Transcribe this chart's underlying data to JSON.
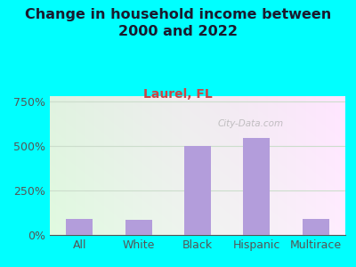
{
  "title": "Change in household income between\n2000 and 2022",
  "subtitle": "Laurel, FL",
  "categories": [
    "All",
    "White",
    "Black",
    "Hispanic",
    "Multirace"
  ],
  "values": [
    90,
    85,
    500,
    545,
    90
  ],
  "bar_color": "#b39ddb",
  "title_fontsize": 11.5,
  "subtitle_fontsize": 10,
  "subtitle_color": "#cc4444",
  "title_color": "#1a1a2e",
  "tick_color": "#555555",
  "yticks": [
    0,
    250,
    500,
    750
  ],
  "ylim": [
    0,
    780
  ],
  "background_outer": "#00ffff",
  "watermark": "City-Data.com",
  "xlabel_fontsize": 9,
  "ylabel_fontsize": 9,
  "grid_color": "#ccddcc",
  "bar_width": 0.45
}
